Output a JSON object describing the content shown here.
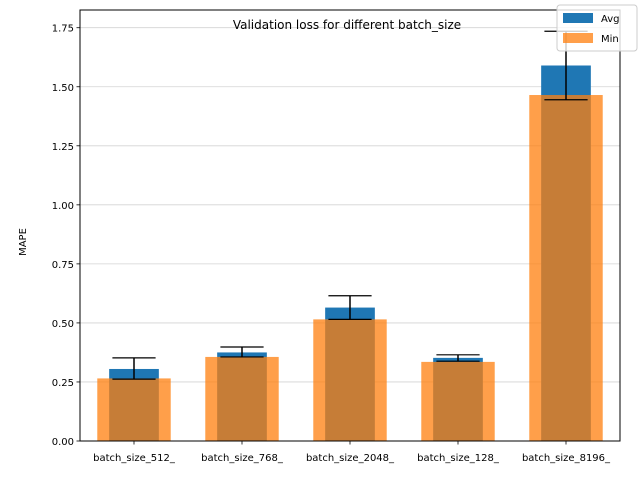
{
  "chart_data": {
    "type": "bar",
    "title": "Validation loss for different batch_size",
    "xlabel": "",
    "ylabel": "MAPE",
    "categories": [
      "batch_size_512_",
      "batch_size_768_",
      "batch_size_2048_",
      "batch_size_128_",
      "batch_size_8196_"
    ],
    "series": [
      {
        "name": "Avg",
        "color": "#1f77b4",
        "values": [
          0.305,
          0.375,
          0.565,
          0.352,
          1.59
        ],
        "error_low": [
          0.262,
          0.356,
          0.515,
          0.338,
          1.445
        ],
        "error_high": [
          0.352,
          0.398,
          0.615,
          0.365,
          1.735
        ]
      },
      {
        "name": "Min",
        "color": "#ff7f0e",
        "opacity": 0.75,
        "values": [
          0.265,
          0.356,
          0.515,
          0.335,
          1.465
        ]
      }
    ],
    "ylim": [
      0,
      1.825
    ],
    "yticks": [
      "0.00",
      "0.25",
      "0.50",
      "0.75",
      "1.00",
      "1.25",
      "1.50",
      "1.75"
    ],
    "grid": "y",
    "legend": "top-right"
  }
}
